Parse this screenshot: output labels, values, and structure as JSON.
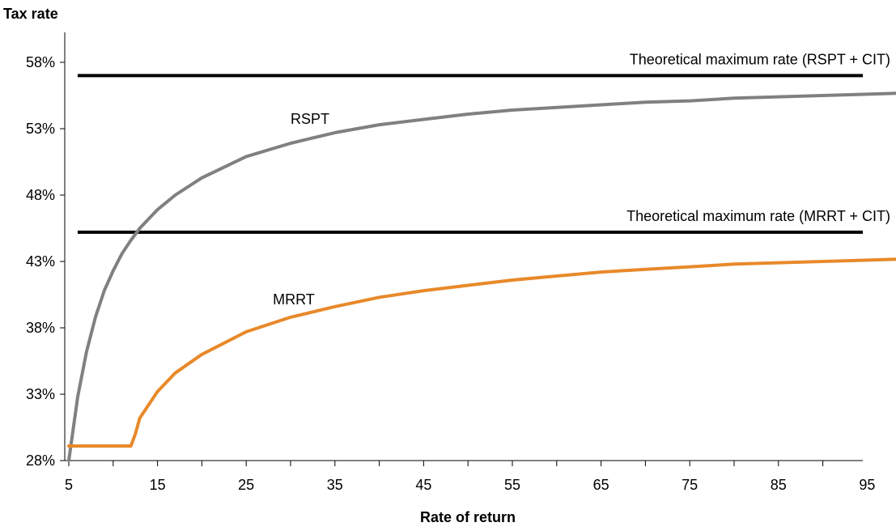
{
  "chart_data": {
    "type": "line",
    "ylabel": "Tax rate",
    "xlabel": "Rate of return",
    "xlim": [
      5,
      100
    ],
    "ylim": [
      28,
      61
    ],
    "x_ticks": [
      5,
      15,
      25,
      35,
      45,
      55,
      65,
      75,
      85,
      95
    ],
    "y_ticks": [
      28,
      33,
      38,
      43,
      48,
      53,
      58
    ],
    "y_tick_labels": [
      "28%",
      "33%",
      "38%",
      "43%",
      "48%",
      "53%",
      "58%"
    ],
    "grid": false,
    "legend": "none",
    "series": [
      {
        "name": "RSPT",
        "color": "#808080",
        "x": [
          5,
          6,
          7,
          8,
          9,
          10,
          11,
          12,
          13,
          14,
          15,
          17,
          20,
          25,
          30,
          35,
          40,
          45,
          50,
          55,
          60,
          65,
          70,
          75,
          80,
          85,
          90,
          95,
          100
        ],
        "y": [
          28.0,
          32.8,
          36.2,
          38.8,
          40.8,
          42.3,
          43.6,
          44.6,
          45.5,
          46.2,
          46.9,
          48.0,
          49.3,
          50.9,
          51.9,
          52.7,
          53.3,
          53.7,
          54.1,
          54.4,
          54.6,
          54.8,
          55.0,
          55.1,
          55.3,
          55.4,
          55.5,
          55.6,
          55.7
        ]
      },
      {
        "name": "MRRT",
        "color": "#e8892a",
        "x": [
          5,
          10,
          12,
          12.5,
          13,
          15,
          17,
          20,
          25,
          30,
          35,
          40,
          45,
          50,
          55,
          60,
          65,
          70,
          75,
          80,
          85,
          90,
          95,
          100
        ],
        "y": [
          29.1,
          29.1,
          29.1,
          30.0,
          31.2,
          33.2,
          34.6,
          36.0,
          37.7,
          38.8,
          39.6,
          40.3,
          40.8,
          41.2,
          41.6,
          41.9,
          42.2,
          42.4,
          42.6,
          42.8,
          42.9,
          43.0,
          43.1,
          43.2
        ]
      }
    ],
    "reference_lines": [
      {
        "id": "rspt_max",
        "value": 57.0,
        "label": "Theoretical maximum rate (RSPT + CIT)",
        "color": "#000000"
      },
      {
        "id": "mrrt_max",
        "value": 45.2,
        "label": "Theoretical maximum rate (MRRT + CIT)",
        "color": "#000000"
      }
    ],
    "annotations": [
      {
        "text": "RSPT",
        "x": 30,
        "y": 53.0
      },
      {
        "text": "MRRT",
        "x": 28,
        "y": 39.4
      }
    ]
  }
}
